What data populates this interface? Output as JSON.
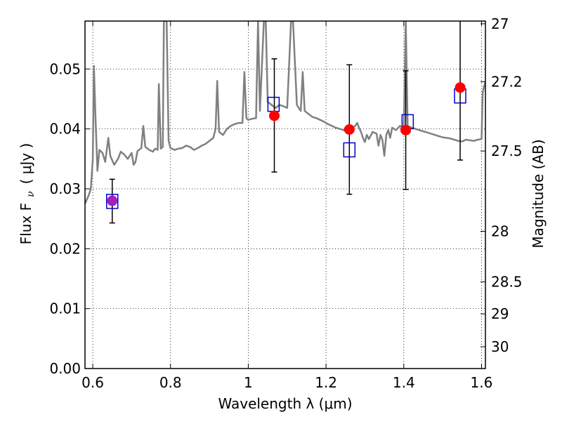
{
  "chart_data": {
    "type": "scatter",
    "xlabel": "Wavelength  λ (μm)",
    "ylabel_left": "Flux  F",
    "ylabel_left_sub": "ν",
    "ylabel_left_unit": "(  μJy )",
    "ylabel_right": "Magnitude (AB)",
    "xlim": [
      0.58,
      1.61
    ],
    "ylim": [
      0.0,
      0.058
    ],
    "grid": true,
    "x_ticks": [
      0.6,
      0.8,
      1.0,
      1.2,
      1.4,
      1.6
    ],
    "x_tick_labels": [
      "0.6",
      "0.8",
      "1",
      "1.2",
      "1.4",
      "1.6"
    ],
    "y_ticks": [
      0.0,
      0.01,
      0.02,
      0.03,
      0.04,
      0.05
    ],
    "y_tick_labels": [
      "0.00",
      "0.01",
      "0.02",
      "0.03",
      "0.04",
      "0.05"
    ],
    "right_ticks": [
      {
        "mag": 27,
        "label": "27"
      },
      {
        "mag": 27.2,
        "label": "27.2"
      },
      {
        "mag": 27.5,
        "label": "27.5"
      },
      {
        "mag": 28,
        "label": "28"
      },
      {
        "mag": 28.5,
        "label": "28.5"
      },
      {
        "mag": 29,
        "label": "29"
      },
      {
        "mag": 30,
        "label": "30"
      }
    ],
    "observed": {
      "color": "#ff0000",
      "points": [
        {
          "x": 0.65,
          "y": 0.028,
          "ylo": 0.0243,
          "yhi": 0.0316,
          "color": "#a020c0"
        },
        {
          "x": 1.067,
          "y": 0.0422,
          "ylo": 0.0328,
          "yhi": 0.0517
        },
        {
          "x": 1.26,
          "y": 0.0399,
          "ylo": 0.0291,
          "yhi": 0.0507
        },
        {
          "x": 1.405,
          "y": 0.0398,
          "ylo": 0.0299,
          "yhi": 0.0497
        },
        {
          "x": 1.545,
          "y": 0.0469,
          "ylo": 0.0348,
          "yhi": 0.059
        }
      ]
    },
    "model_bandpass": {
      "color": "#0000cc",
      "points": [
        {
          "x": 0.65,
          "y": 0.0279
        },
        {
          "x": 1.065,
          "y": 0.0441
        },
        {
          "x": 1.26,
          "y": 0.0365
        },
        {
          "x": 1.41,
          "y": 0.0412
        },
        {
          "x": 1.545,
          "y": 0.0455
        }
      ]
    },
    "spectrum": {
      "color": "#808080",
      "points": [
        [
          0.58,
          0.0275
        ],
        [
          0.59,
          0.029
        ],
        [
          0.595,
          0.03
        ],
        [
          0.6,
          0.035
        ],
        [
          0.603,
          0.0505
        ],
        [
          0.607,
          0.042
        ],
        [
          0.612,
          0.033
        ],
        [
          0.617,
          0.0365
        ],
        [
          0.625,
          0.036
        ],
        [
          0.632,
          0.0345
        ],
        [
          0.64,
          0.0385
        ],
        [
          0.645,
          0.0355
        ],
        [
          0.655,
          0.034
        ],
        [
          0.665,
          0.035
        ],
        [
          0.672,
          0.0362
        ],
        [
          0.68,
          0.0358
        ],
        [
          0.69,
          0.035
        ],
        [
          0.7,
          0.036
        ],
        [
          0.705,
          0.034
        ],
        [
          0.71,
          0.0345
        ],
        [
          0.715,
          0.0363
        ],
        [
          0.725,
          0.0368
        ],
        [
          0.73,
          0.0405
        ],
        [
          0.735,
          0.037
        ],
        [
          0.745,
          0.0365
        ],
        [
          0.755,
          0.0362
        ],
        [
          0.76,
          0.0367
        ],
        [
          0.767,
          0.0365
        ],
        [
          0.77,
          0.0475
        ],
        [
          0.775,
          0.0367
        ],
        [
          0.78,
          0.037
        ],
        [
          0.783,
          0.058
        ],
        [
          0.79,
          0.058
        ],
        [
          0.795,
          0.038
        ],
        [
          0.8,
          0.0368
        ],
        [
          0.81,
          0.0365
        ],
        [
          0.82,
          0.0367
        ],
        [
          0.83,
          0.0368
        ],
        [
          0.84,
          0.0372
        ],
        [
          0.85,
          0.037
        ],
        [
          0.86,
          0.0365
        ],
        [
          0.87,
          0.0368
        ],
        [
          0.88,
          0.0372
        ],
        [
          0.89,
          0.0375
        ],
        [
          0.9,
          0.038
        ],
        [
          0.91,
          0.0385
        ],
        [
          0.916,
          0.04
        ],
        [
          0.92,
          0.048
        ],
        [
          0.925,
          0.0395
        ],
        [
          0.935,
          0.039
        ],
        [
          0.945,
          0.04
        ],
        [
          0.955,
          0.0405
        ],
        [
          0.965,
          0.0408
        ],
        [
          0.975,
          0.041
        ],
        [
          0.985,
          0.041
        ],
        [
          0.99,
          0.0495
        ],
        [
          0.995,
          0.0418
        ],
        [
          1.0,
          0.0415
        ],
        [
          1.01,
          0.0417
        ],
        [
          1.02,
          0.0418
        ],
        [
          1.025,
          0.058
        ],
        [
          1.03,
          0.043
        ],
        [
          1.04,
          0.058
        ],
        [
          1.045,
          0.058
        ],
        [
          1.05,
          0.0445
        ],
        [
          1.06,
          0.044
        ],
        [
          1.07,
          0.0435
        ],
        [
          1.08,
          0.044
        ],
        [
          1.09,
          0.0438
        ],
        [
          1.1,
          0.0435
        ],
        [
          1.11,
          0.058
        ],
        [
          1.115,
          0.058
        ],
        [
          1.125,
          0.044
        ],
        [
          1.135,
          0.043
        ],
        [
          1.14,
          0.0495
        ],
        [
          1.145,
          0.043
        ],
        [
          1.155,
          0.0425
        ],
        [
          1.165,
          0.042
        ],
        [
          1.175,
          0.0418
        ],
        [
          1.185,
          0.0415
        ],
        [
          1.195,
          0.0412
        ],
        [
          1.205,
          0.0408
        ],
        [
          1.215,
          0.0405
        ],
        [
          1.225,
          0.0402
        ],
        [
          1.235,
          0.04
        ],
        [
          1.245,
          0.0398
        ],
        [
          1.255,
          0.0395
        ],
        [
          1.265,
          0.04
        ],
        [
          1.275,
          0.0405
        ],
        [
          1.28,
          0.041
        ],
        [
          1.285,
          0.0402
        ],
        [
          1.29,
          0.0395
        ],
        [
          1.295,
          0.0385
        ],
        [
          1.3,
          0.0378
        ],
        [
          1.305,
          0.039
        ],
        [
          1.31,
          0.0383
        ],
        [
          1.32,
          0.0395
        ],
        [
          1.33,
          0.0392
        ],
        [
          1.335,
          0.0372
        ],
        [
          1.34,
          0.039
        ],
        [
          1.345,
          0.0382
        ],
        [
          1.35,
          0.0355
        ],
        [
          1.355,
          0.039
        ],
        [
          1.36,
          0.0398
        ],
        [
          1.365,
          0.0385
        ],
        [
          1.37,
          0.0402
        ],
        [
          1.38,
          0.0398
        ],
        [
          1.39,
          0.0405
        ],
        [
          1.4,
          0.04
        ],
        [
          1.405,
          0.058
        ],
        [
          1.41,
          0.0405
        ],
        [
          1.42,
          0.0402
        ],
        [
          1.43,
          0.04
        ],
        [
          1.44,
          0.0398
        ],
        [
          1.45,
          0.0396
        ],
        [
          1.46,
          0.0394
        ],
        [
          1.47,
          0.0392
        ],
        [
          1.48,
          0.039
        ],
        [
          1.49,
          0.0388
        ],
        [
          1.5,
          0.0386
        ],
        [
          1.51,
          0.0385
        ],
        [
          1.52,
          0.0384
        ],
        [
          1.53,
          0.0382
        ],
        [
          1.54,
          0.038
        ],
        [
          1.55,
          0.0379
        ],
        [
          1.56,
          0.0382
        ],
        [
          1.57,
          0.0381
        ],
        [
          1.58,
          0.038
        ],
        [
          1.59,
          0.0382
        ],
        [
          1.6,
          0.0383
        ],
        [
          1.603,
          0.046
        ],
        [
          1.606,
          0.047
        ],
        [
          1.61,
          0.0478
        ]
      ]
    }
  }
}
